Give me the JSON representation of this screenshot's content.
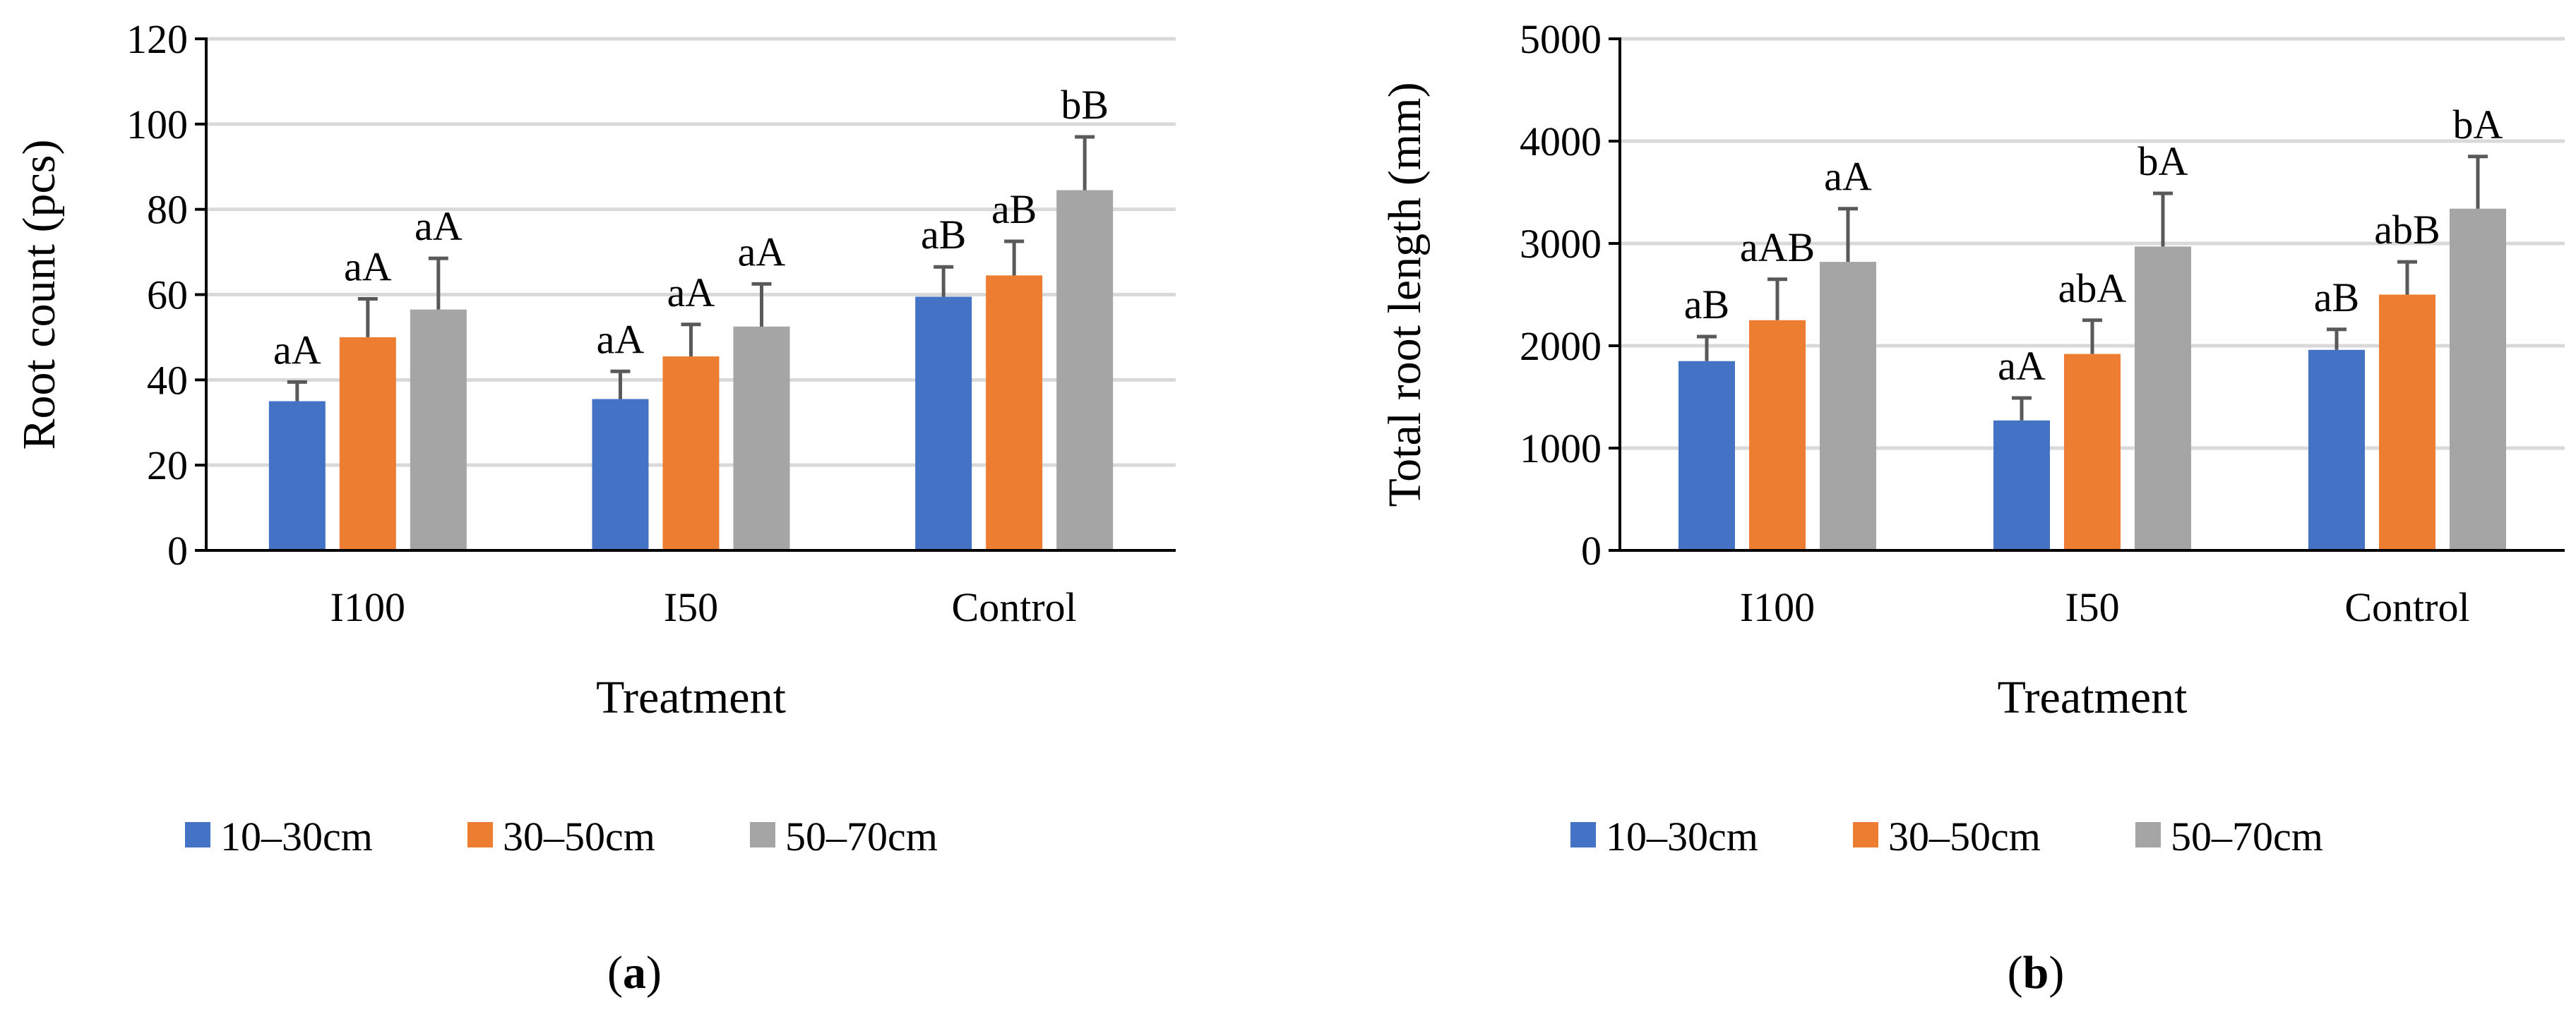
{
  "chart_data": [
    {
      "type": "bar",
      "panel_label": "a",
      "categories": [
        "I100",
        "I50",
        "Control"
      ],
      "xlabel": "Treatment",
      "ylabel": "Root count (pcs)",
      "ylim": [
        0,
        120
      ],
      "yticks": [
        0,
        20,
        40,
        60,
        80,
        100,
        120
      ],
      "grid": true,
      "legend_position": "bottom",
      "series": [
        {
          "name": "10–30cm",
          "color": "#4472c4",
          "values": [
            35,
            35.5,
            59.5
          ],
          "errors": [
            4.5,
            6.5,
            7
          ],
          "labels": [
            "aA",
            "aA",
            "aB"
          ]
        },
        {
          "name": "30–50cm",
          "color": "#ed7d31",
          "values": [
            50,
            45.5,
            64.5
          ],
          "errors": [
            9,
            7.5,
            8
          ],
          "labels": [
            "aA",
            "aA",
            "aB"
          ]
        },
        {
          "name": "50–70cm",
          "color": "#a5a5a5",
          "values": [
            56.5,
            52.5,
            84.5
          ],
          "errors": [
            12,
            10,
            12.5
          ],
          "labels": [
            "aA",
            "aA",
            "bB"
          ]
        }
      ]
    },
    {
      "type": "bar",
      "panel_label": "b",
      "categories": [
        "I100",
        "I50",
        "Control"
      ],
      "xlabel": "Treatment",
      "ylabel": "Total root length (mm)",
      "ylim": [
        0,
        5000
      ],
      "yticks": [
        0,
        1000,
        2000,
        3000,
        4000,
        5000
      ],
      "grid": true,
      "legend_position": "bottom",
      "series": [
        {
          "name": "10–30cm",
          "color": "#4472c4",
          "values": [
            1850,
            1270,
            1960
          ],
          "errors": [
            240,
            220,
            200
          ],
          "labels": [
            "aB",
            "aA",
            "aB"
          ]
        },
        {
          "name": "30–50cm",
          "color": "#ed7d31",
          "values": [
            2250,
            1920,
            2500
          ],
          "errors": [
            400,
            330,
            320
          ],
          "labels": [
            "aAB",
            "abA",
            "abB"
          ]
        },
        {
          "name": "50–70cm",
          "color": "#a5a5a5",
          "values": [
            2820,
            2970,
            3340
          ],
          "errors": [
            520,
            520,
            510
          ],
          "labels": [
            "aA",
            "bA",
            "bA"
          ]
        }
      ]
    }
  ]
}
